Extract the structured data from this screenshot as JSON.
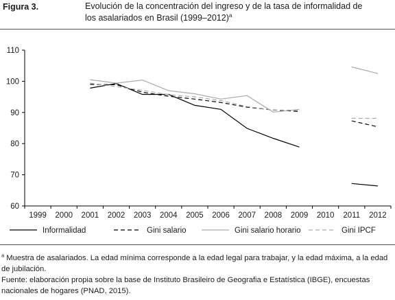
{
  "figure": {
    "label": "Figura 3.",
    "title_line1": "Evolución de la concentración del ingreso y de la tasa de informalidad de",
    "title_line2": "los asalariados en Brasil (1999–2012)",
    "title_sup": "a"
  },
  "notes": {
    "note_sup": "a",
    "note_text": " Muestra de asalariados. La edad mínima corresponde a la edad legal para trabajar, y la edad máxima, a la edad de jubilación.",
    "source_text": "Fuente: elaboración propia sobre la base de Instituto Brasileiro de Geografia e Estatística (IBGE), encuestas nacionales de hogares (PNAD, 2015)."
  },
  "chart_data": {
    "type": "line",
    "x": [
      "1999",
      "2000",
      "2001",
      "2002",
      "2003",
      "2004",
      "2005",
      "2006",
      "2007",
      "2008",
      "2009",
      "2010",
      "2011",
      "2012"
    ],
    "ylim": [
      60,
      110
    ],
    "yticks": [
      60,
      70,
      80,
      90,
      100,
      110
    ],
    "grid": false,
    "legend_position": "bottom",
    "series": [
      {
        "name": "Informalidad",
        "style": "solid",
        "color": "#000000",
        "values": [
          null,
          null,
          97.8,
          99.3,
          95.8,
          95.8,
          92.3,
          91.0,
          84.9,
          81.7,
          78.9,
          null,
          67.2,
          66.4
        ]
      },
      {
        "name": "Gini salario",
        "style": "dashed",
        "color": "#000000",
        "values": [
          null,
          null,
          99.0,
          98.9,
          96.5,
          95.2,
          94.3,
          93.2,
          91.7,
          90.8,
          90.3,
          null,
          87.3,
          85.4
        ]
      },
      {
        "name": "Gini salario horario",
        "style": "solid",
        "color": "#aaaaaa",
        "values": [
          null,
          null,
          100.5,
          99.4,
          100.4,
          97.0,
          96.0,
          94.3,
          95.4,
          90.1,
          91.0,
          null,
          104.6,
          102.5
        ]
      },
      {
        "name": "Gini IPCF",
        "style": "dashed",
        "color": "#aaaaaa",
        "values": [
          null,
          null,
          99.4,
          98.3,
          97.1,
          95.7,
          95.0,
          93.8,
          91.9,
          90.8,
          90.7,
          null,
          88.1,
          88.1
        ]
      }
    ]
  }
}
